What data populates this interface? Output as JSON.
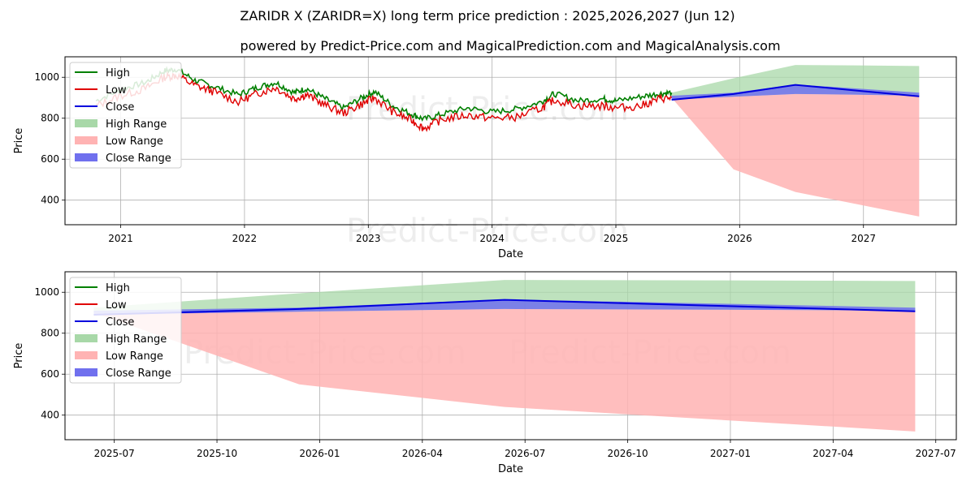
{
  "title": "ZARIDR X (ZARIDR=X) long term price prediction : 2025,2026,2027 (Jun 12)",
  "subtitle": "powered by Predict-Price.com and MagicalPrediction.com and MagicalAnalysis.com",
  "watermark": "Predict-Price.com",
  "colors": {
    "high": "#008000",
    "low": "#e00000",
    "close": "#0000dd",
    "high_range": "#a8d8a8",
    "low_range": "#ffb3b3",
    "close_range": "#7070ee",
    "grid": "#b0b0b0"
  },
  "legend": [
    {
      "label": "High",
      "kind": "line",
      "color": "#008000"
    },
    {
      "label": "Low",
      "kind": "line",
      "color": "#e00000"
    },
    {
      "label": "Close",
      "kind": "line",
      "color": "#0000dd"
    },
    {
      "label": "High Range",
      "kind": "patch",
      "color": "#a8d8a8"
    },
    {
      "label": "Low Range",
      "kind": "patch",
      "color": "#ffb3b3"
    },
    {
      "label": "Close Range",
      "kind": "patch",
      "color": "#7070ee"
    }
  ],
  "chart_data": [
    {
      "type": "line",
      "name": "long-term",
      "xlabel": "Date",
      "ylabel": "Price",
      "xlim": [
        2020.55,
        2027.75
      ],
      "ylim": [
        280,
        1100
      ],
      "xticks": [
        2021,
        2022,
        2023,
        2024,
        2025,
        2026,
        2027
      ],
      "xticklabels": [
        "2021",
        "2022",
        "2023",
        "2024",
        "2025",
        "2026",
        "2027"
      ],
      "yticks": [
        400,
        600,
        800,
        1000
      ],
      "legend_position": "upper-left",
      "history": {
        "x": [
          2020.8,
          2021.0,
          2021.2,
          2021.35,
          2021.45,
          2021.6,
          2021.75,
          2021.95,
          2022.1,
          2022.25,
          2022.4,
          2022.5,
          2022.65,
          2022.8,
          2022.95,
          2023.05,
          2023.2,
          2023.35,
          2023.45,
          2023.6,
          2023.8,
          2024.0,
          2024.2,
          2024.4,
          2024.5,
          2024.7,
          2024.9,
          2025.0,
          2025.2,
          2025.35,
          2025.45
        ],
        "high": [
          885,
          940,
          975,
          1030,
          1040,
          985,
          955,
          915,
          950,
          975,
          925,
          945,
          895,
          850,
          900,
          930,
          860,
          820,
          795,
          820,
          850,
          830,
          845,
          880,
          920,
          885,
          895,
          885,
          905,
          920,
          925
        ],
        "low": [
          860,
          910,
          945,
          1000,
          1010,
          960,
          930,
          880,
          920,
          950,
          895,
          915,
          865,
          825,
          870,
          900,
          830,
          790,
          750,
          795,
          815,
          800,
          805,
          850,
          890,
          860,
          860,
          850,
          860,
          895,
          900
        ]
      },
      "forecast": {
        "x": [
          2025.45,
          2025.95,
          2026.45,
          2026.95,
          2027.45
        ],
        "high_upper": [
          925,
          995,
          1060,
          1058,
          1055
        ],
        "high_lower": [
          900,
          905,
          918,
          915,
          910
        ],
        "low_upper": [
          900,
          905,
          918,
          915,
          910
        ],
        "low_lower": [
          900,
          550,
          440,
          380,
          320
        ],
        "close_upper": [
          910,
          925,
          965,
          945,
          925
        ],
        "close_lower": [
          890,
          905,
          918,
          915,
          910
        ],
        "close": [
          890,
          918,
          963,
          935,
          907
        ]
      }
    },
    {
      "type": "line",
      "name": "zoomed-forecast",
      "xlabel": "Date",
      "ylabel": "Price",
      "xlim": [
        2025.38,
        2027.55
      ],
      "ylim": [
        280,
        1100
      ],
      "xticks": [
        2025.5,
        2025.75,
        2026.0,
        2026.25,
        2026.5,
        2026.75,
        2027.0,
        2027.25,
        2027.5
      ],
      "xticklabels": [
        "2025-07",
        "2025-10",
        "2026-01",
        "2026-04",
        "2026-07",
        "2026-10",
        "2027-01",
        "2027-04",
        "2027-07"
      ],
      "yticks": [
        400,
        600,
        800,
        1000
      ],
      "legend_position": "upper-left",
      "forecast": {
        "x": [
          2025.45,
          2025.95,
          2026.45,
          2026.95,
          2027.45
        ],
        "high_upper": [
          925,
          995,
          1060,
          1058,
          1055
        ],
        "high_lower": [
          900,
          905,
          918,
          915,
          910
        ],
        "low_upper": [
          900,
          905,
          918,
          915,
          910
        ],
        "low_lower": [
          900,
          550,
          440,
          380,
          320
        ],
        "close_upper": [
          910,
          925,
          965,
          945,
          925
        ],
        "close_lower": [
          890,
          905,
          918,
          915,
          910
        ],
        "close": [
          890,
          918,
          963,
          935,
          907
        ]
      }
    }
  ]
}
